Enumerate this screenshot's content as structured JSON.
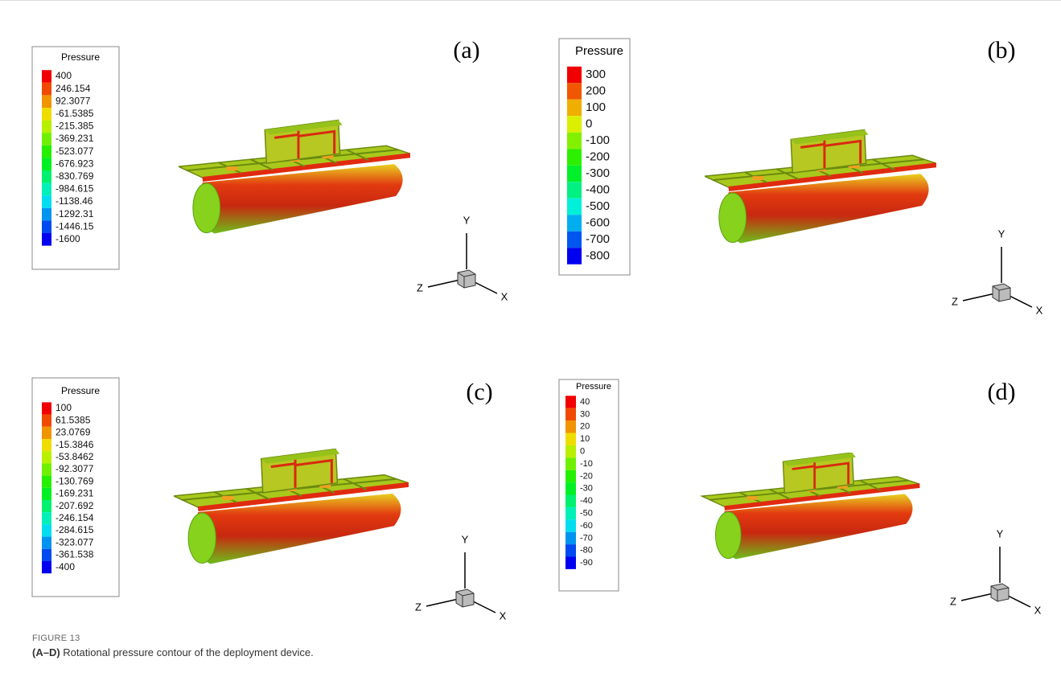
{
  "panels": [
    {
      "label": "(a)",
      "legend_title": "Pressure",
      "legend_labels": [
        "400",
        "246.154",
        "92.3077",
        "-61.5385",
        "-215.385",
        "-369.231",
        "-523.077",
        "-676.923",
        "-830.769",
        "-984.615",
        "-1138.46",
        "-1292.31",
        "-1446.15",
        "-1600"
      ],
      "axis_labels": {
        "y": "Y",
        "z": "Z",
        "x": "X"
      }
    },
    {
      "label": "(b)",
      "legend_title": "Pressure",
      "legend_labels": [
        "300",
        "200",
        "100",
        "0",
        "-100",
        "-200",
        "-300",
        "-400",
        "-500",
        "-600",
        "-700",
        "-800"
      ],
      "axis_labels": {
        "y": "Y",
        "z": "Z",
        "x": "X"
      }
    },
    {
      "label": "(c)",
      "legend_title": "Pressure",
      "legend_labels": [
        "100",
        "61.5385",
        "23.0769",
        "-15.3846",
        "-53.8462",
        "-92.3077",
        "-130.769",
        "-169.231",
        "-207.692",
        "-246.154",
        "-284.615",
        "-323.077",
        "-361.538",
        "-400"
      ],
      "axis_labels": {
        "y": "Y",
        "z": "Z",
        "x": "X"
      }
    },
    {
      "label": "(d)",
      "legend_title": "Pressure",
      "legend_labels": [
        "40",
        "30",
        "20",
        "10",
        "0",
        "-10",
        "-20",
        "-30",
        "-40",
        "-50",
        "-60",
        "-70",
        "-80",
        "-90"
      ],
      "axis_labels": {
        "y": "Y",
        "z": "Z",
        "x": "X"
      }
    }
  ],
  "caption": {
    "figure_label": "FIGURE 13",
    "range": "(A–D)",
    "text": "Rotational pressure contour of the deployment device."
  }
}
